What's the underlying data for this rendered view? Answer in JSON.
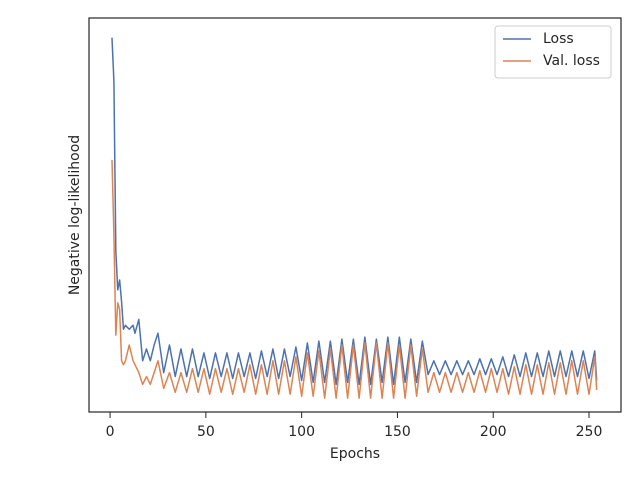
{
  "chart_data": {
    "type": "line",
    "xlabel": "Epochs",
    "ylabel": "Negative log-likelihood",
    "x": [
      1,
      2,
      3,
      4,
      5,
      6,
      7,
      8,
      10,
      12,
      13,
      15,
      17,
      19,
      21,
      23,
      25,
      28,
      31,
      34,
      37,
      40,
      43,
      46,
      49,
      52,
      55,
      58,
      61,
      64,
      67,
      70,
      73,
      76,
      79,
      82,
      85,
      88,
      91,
      94,
      97,
      100,
      103,
      106,
      109,
      112,
      115,
      118,
      121,
      124,
      127,
      130,
      133,
      136,
      139,
      142,
      145,
      148,
      151,
      154,
      157,
      160,
      163,
      166,
      169,
      172,
      175,
      178,
      181,
      184,
      187,
      190,
      193,
      196,
      199,
      202,
      205,
      208,
      211,
      214,
      217,
      220,
      223,
      226,
      229,
      232,
      235,
      238,
      241,
      244,
      247,
      250,
      253,
      254
    ],
    "series": [
      {
        "name": "Loss",
        "color": "#4c72b0",
        "values": [
          95,
          84,
          41,
          31,
          33.5,
          28,
          21,
          22,
          21,
          22,
          20,
          23.5,
          13,
          16,
          13,
          17,
          20,
          10,
          17,
          9,
          16,
          9,
          16,
          9,
          15,
          8.5,
          15,
          9,
          15,
          8.5,
          15,
          9,
          15,
          8.5,
          15.5,
          9,
          16,
          8.5,
          16,
          9,
          16.5,
          8,
          17.5,
          7.5,
          18,
          7.5,
          18,
          7,
          18.5,
          7.5,
          18.5,
          7,
          19,
          7,
          18.5,
          7.5,
          19,
          7,
          19,
          7.5,
          18.5,
          7.5,
          18,
          9.5,
          13,
          9.5,
          13,
          9.5,
          13,
          9.5,
          13,
          9.5,
          13.5,
          9.5,
          13.5,
          9.5,
          14,
          9,
          14.5,
          9,
          15,
          9,
          15,
          9,
          15.5,
          9,
          15.5,
          9,
          15.5,
          9,
          15.5,
          8.5,
          15.5,
          8
        ]
      },
      {
        "name": "Val. loss",
        "color": "#dd8452",
        "values": [
          64,
          45,
          19.5,
          27.7,
          26,
          13,
          12,
          13,
          17,
          13,
          12,
          10,
          7,
          9,
          7,
          10,
          13,
          6,
          10,
          5,
          10,
          5,
          11,
          5,
          11,
          4.5,
          11,
          5,
          11,
          4.5,
          11,
          5,
          12,
          4.5,
          12,
          4.5,
          13,
          4.5,
          13,
          4.5,
          14,
          4,
          15,
          4,
          15.5,
          3.5,
          16,
          3.5,
          17,
          3.5,
          17,
          3.5,
          17.5,
          3.5,
          17.5,
          3.5,
          17.5,
          3.5,
          17,
          3.5,
          17,
          4,
          16,
          5,
          10,
          5,
          10,
          5,
          10,
          5,
          10,
          5,
          10.5,
          5,
          11,
          5,
          11,
          4.5,
          11.5,
          4.5,
          12,
          4.5,
          12,
          4.5,
          12.5,
          4.5,
          12.5,
          4.5,
          13,
          4.5,
          13,
          4.5,
          14,
          5.6
        ]
      }
    ],
    "xlim": [
      -11,
      266.7
    ],
    "xticks": [
      0,
      50,
      100,
      150,
      200,
      250
    ],
    "ylim": [
      0,
      100
    ],
    "legend": "upper right"
  }
}
